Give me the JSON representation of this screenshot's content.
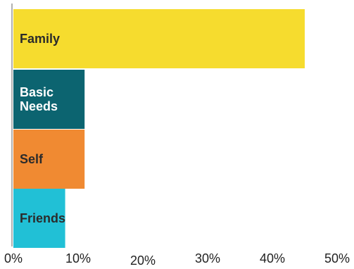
{
  "chart_data": {
    "type": "bar",
    "orientation": "horizontal",
    "categories": [
      {
        "lines": [
          "Family"
        ],
        "label_color": "#2b2b2b"
      },
      {
        "lines": [
          "Basic",
          "Needs"
        ],
        "label_color": "#ffffff"
      },
      {
        "lines": [
          "Self"
        ],
        "label_color": "#2b2b2b"
      },
      {
        "lines": [
          "Friends"
        ],
        "label_color": "#2b2b2b"
      }
    ],
    "values": [
      45,
      11,
      11,
      8
    ],
    "colors": [
      "#f6dc2e",
      "#0c6470",
      "#f08a32",
      "#21c0d6"
    ],
    "xlim": [
      0,
      50
    ],
    "xticks": [
      "0%",
      "10%",
      "20%",
      "30%",
      "40%",
      "50%"
    ],
    "grid": false,
    "axis_color": "#b0b0b0"
  }
}
